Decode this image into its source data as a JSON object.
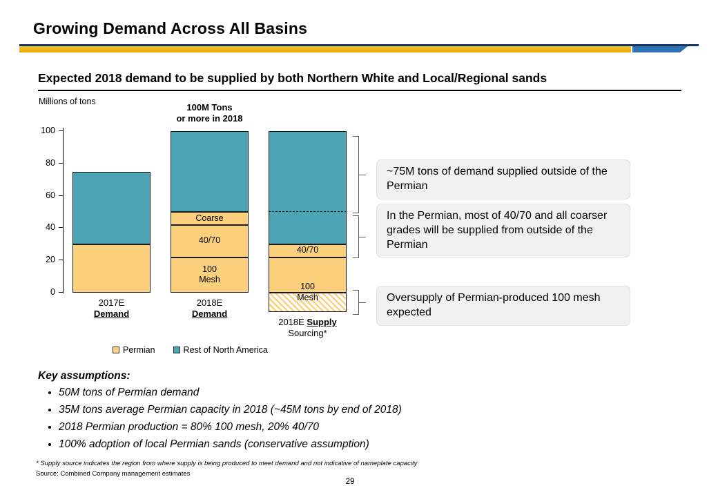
{
  "slide": {
    "title": "Growing Demand Across All Basins",
    "subtitle": "Expected 2018 demand to be supplied by both Northern White and Local/Regional sands",
    "page_number": "29"
  },
  "chart_data": {
    "type": "bar",
    "stacked": true,
    "ylabel": "Millions of tons",
    "ylim": [
      -14,
      100
    ],
    "yticks": [
      0,
      20,
      40,
      60,
      80,
      100
    ],
    "grid": false,
    "legend_position": "bottom",
    "colors": {
      "permian": "#FCD07C",
      "rest_na": "#4BA4B4"
    },
    "legend": [
      {
        "label": "Permian",
        "swatch": "permian"
      },
      {
        "label": "Rest of North America",
        "swatch": "rest_na"
      }
    ],
    "bars": [
      {
        "name": "2017E Demand",
        "axis_label_lines": [
          [
            {
              "text": "2017E",
              "emph": false
            }
          ],
          [
            {
              "text": "Demand",
              "emph": true
            }
          ]
        ],
        "segments": [
          {
            "series": "Permian",
            "from": 0,
            "to": 30,
            "fill": "permian",
            "label": ""
          },
          {
            "series": "Rest of North America",
            "from": 30,
            "to": 75,
            "fill": "rest_na",
            "label": ""
          }
        ]
      },
      {
        "name": "2018E Demand",
        "annotation": "100M Tons\nor more in 2018",
        "axis_label_lines": [
          [
            {
              "text": "2018E",
              "emph": false
            }
          ],
          [
            {
              "text": "Demand",
              "emph": true
            }
          ]
        ],
        "segments": [
          {
            "series": "Permian 100 Mesh",
            "from": 0,
            "to": 22,
            "fill": "permian",
            "label": "100\nMesh"
          },
          {
            "series": "Permian 40/70",
            "from": 22,
            "to": 42,
            "fill": "permian",
            "label": "40/70"
          },
          {
            "series": "Permian Coarse",
            "from": 42,
            "to": 50,
            "fill": "permian",
            "label": "Coarse"
          },
          {
            "series": "Rest of North America",
            "from": 50,
            "to": 100,
            "fill": "rest_na",
            "label": ""
          }
        ]
      },
      {
        "name": "2018E Supply Sourcing*",
        "dashed_line_at": 50,
        "axis_label_lines": [
          [
            {
              "text": "2018E ",
              "emph": false
            },
            {
              "text": "Supply",
              "emph": true
            }
          ],
          [
            {
              "text": "Sourcing*",
              "emph": false
            }
          ]
        ],
        "segments": [
          {
            "series": "Permian 100 mesh oversupply",
            "from": -12,
            "to": 0,
            "fill": "permian_hatch",
            "label": ""
          },
          {
            "series": "Permian 100 Mesh",
            "from": 0,
            "to": 22,
            "fill": "permian",
            "label": "100\nMesh",
            "label_pos": "bottom"
          },
          {
            "series": "Permian 40/70",
            "from": 22,
            "to": 30,
            "fill": "permian",
            "label": "40/70"
          },
          {
            "series": "Rest of North America",
            "from": 30,
            "to": 100,
            "fill": "rest_na",
            "label": ""
          }
        ]
      }
    ]
  },
  "callouts": [
    {
      "text": "~75M tons of demand supplied outside of the Permian"
    },
    {
      "text": "In the Permian, most of 40/70 and all coarser grades will be supplied from outside of the Permian"
    },
    {
      "text": "Oversupply of Permian-produced 100 mesh expected"
    }
  ],
  "assumptions": {
    "title": "Key assumptions:",
    "items": [
      "50M tons of Permian demand",
      "35M tons average Permian capacity in 2018 (~45M tons by end of 2018)",
      "2018 Permian production = 80% 100 mesh, 20% 40/70",
      "100% adoption of local Permian sands (conservative assumption)"
    ]
  },
  "footnotes": {
    "note": "* Supply source indicates the region from where supply is being produced to meet demand and not indicative of nameplate capacity",
    "source": "Source: Combined Company management estimates"
  }
}
